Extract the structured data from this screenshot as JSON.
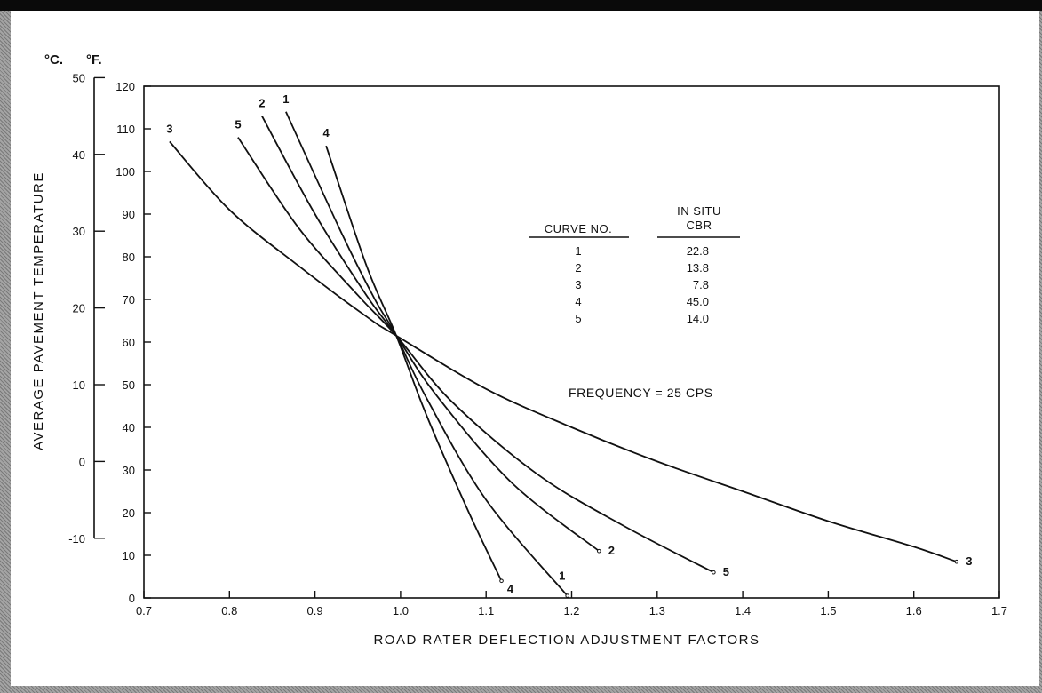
{
  "chart_data": {
    "type": "line",
    "xlabel": "ROAD RATER DEFLECTION ADJUSTMENT FACTORS",
    "ylabel": "AVERAGE PAVEMENT TEMPERATURE",
    "unit_c": "°C.",
    "unit_f": "°F.",
    "xlim": [
      0.7,
      1.7
    ],
    "ylim": [
      0,
      120
    ],
    "x_ticks": [
      0.7,
      0.8,
      0.9,
      1.0,
      1.1,
      1.2,
      1.3,
      1.4,
      1.5,
      1.6,
      1.7
    ],
    "x_tick_labels": [
      "0.7",
      "0.8",
      "0.9",
      "1.0",
      "1.1",
      "1.2",
      "1.3",
      "1.4",
      "1.5",
      "1.6",
      "1.7"
    ],
    "y_ticks": [
      0,
      10,
      20,
      30,
      40,
      50,
      60,
      70,
      80,
      90,
      100,
      110,
      120
    ],
    "y_tick_labels": [
      "0",
      "10",
      "20",
      "30",
      "40",
      "50",
      "60",
      "70",
      "80",
      "90",
      "100",
      "110",
      "120"
    ],
    "c_ticks": [
      -10,
      0,
      10,
      20,
      30,
      40,
      50
    ],
    "c_tick_labels": [
      "-10",
      "0",
      "10",
      "20",
      "30",
      "40",
      "50"
    ],
    "series": [
      {
        "name": "1",
        "points": [
          [
            0.866,
            114
          ],
          [
            0.93,
            86
          ],
          [
            0.97,
            70
          ],
          [
            0.995,
            61.5
          ],
          [
            1.03,
            47
          ],
          [
            1.1,
            23
          ],
          [
            1.195,
            0.5
          ]
        ]
      },
      {
        "name": "2",
        "points": [
          [
            0.838,
            113
          ],
          [
            0.9,
            90
          ],
          [
            0.96,
            71
          ],
          [
            0.995,
            61.5
          ],
          [
            1.04,
            48
          ],
          [
            1.13,
            27
          ],
          [
            1.232,
            11
          ]
        ]
      },
      {
        "name": "3",
        "points": [
          [
            0.73,
            107
          ],
          [
            0.8,
            91
          ],
          [
            0.88,
            78
          ],
          [
            0.96,
            66
          ],
          [
            0.995,
            61.5
          ],
          [
            1.1,
            49
          ],
          [
            1.2,
            40
          ],
          [
            1.3,
            32
          ],
          [
            1.4,
            25
          ],
          [
            1.5,
            18
          ],
          [
            1.6,
            12
          ],
          [
            1.65,
            8.5
          ]
        ]
      },
      {
        "name": "4",
        "points": [
          [
            0.913,
            106
          ],
          [
            0.96,
            78
          ],
          [
            0.995,
            61.5
          ],
          [
            1.03,
            43
          ],
          [
            1.08,
            20
          ],
          [
            1.118,
            4
          ]
        ]
      },
      {
        "name": "5",
        "points": [
          [
            0.81,
            108
          ],
          [
            0.88,
            87
          ],
          [
            0.95,
            71
          ],
          [
            0.995,
            61.5
          ],
          [
            1.06,
            46
          ],
          [
            1.16,
            29
          ],
          [
            1.26,
            17
          ],
          [
            1.366,
            6
          ]
        ]
      }
    ],
    "curve_labels": [
      {
        "text": "3",
        "x": 0.73,
        "y": 107,
        "pos": "above"
      },
      {
        "text": "5",
        "x": 0.81,
        "y": 108,
        "pos": "above"
      },
      {
        "text": "2",
        "x": 0.838,
        "y": 113,
        "pos": "above"
      },
      {
        "text": "1",
        "x": 0.866,
        "y": 114,
        "pos": "above"
      },
      {
        "text": "4",
        "x": 0.913,
        "y": 106,
        "pos": "above"
      },
      {
        "text": "4",
        "x": 1.118,
        "y": 4,
        "pos": "below"
      },
      {
        "text": "1",
        "x": 1.195,
        "y": 0.5,
        "pos": "upper"
      },
      {
        "text": "2",
        "x": 1.232,
        "y": 11,
        "pos": "right"
      },
      {
        "text": "5",
        "x": 1.366,
        "y": 6,
        "pos": "right"
      },
      {
        "text": "3",
        "x": 1.65,
        "y": 8.5,
        "pos": "right"
      }
    ],
    "table": {
      "col1_header": "CURVE NO.",
      "col2_header_line1": "IN SITU",
      "col2_header_line2": "CBR",
      "rows": [
        {
          "curve": "1",
          "cbr": "22.8"
        },
        {
          "curve": "2",
          "cbr": "13.8"
        },
        {
          "curve": "3",
          "cbr": "7.8"
        },
        {
          "curve": "4",
          "cbr": "45.0"
        },
        {
          "curve": "5",
          "cbr": "14.0"
        }
      ]
    },
    "annotation": "FREQUENCY = 25 CPS",
    "grid": false
  }
}
